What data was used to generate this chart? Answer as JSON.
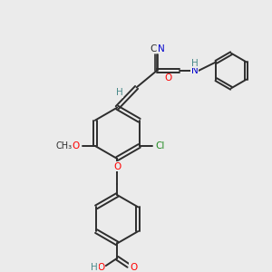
{
  "bg_color": "#ebebeb",
  "bond_color": "#2d2d2d",
  "atom_colors": {
    "N": "#0000cd",
    "O": "#ff0000",
    "Cl": "#228b22",
    "H": "#4a8a8a",
    "C": "#2d2d2d"
  },
  "lw": 1.4,
  "fs": 7.5
}
